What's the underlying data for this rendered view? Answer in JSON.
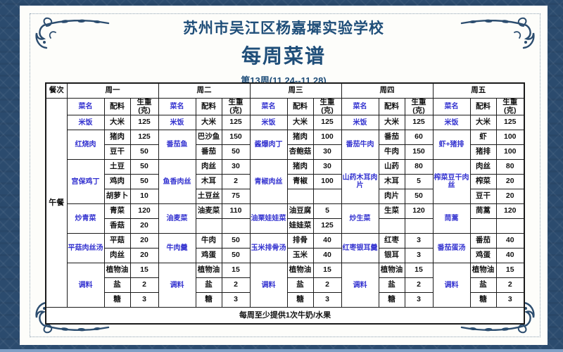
{
  "page": {
    "school": "苏州市吴江区杨嘉墀实验学校",
    "title": "每周菜谱",
    "week": "第13周(11.24--11.28)",
    "footer_note": "每周至少提供1次牛奶/水果"
  },
  "colors": {
    "frame_blue": "#2b4b6e",
    "title_blue": "#1f4e79",
    "dish_blue": "#3433d0",
    "bottom_strip": "#7f9fc5"
  },
  "icons": [
    {
      "name": "corner-flourish",
      "description": "decorative floral swirl in each corner"
    }
  ],
  "table": {
    "meal_header": "餐次",
    "meal_label": "午餐",
    "sub_headers": {
      "dish": "菜名",
      "ingredient": "配料",
      "weight": "生重(克)"
    },
    "days": [
      {
        "label": "周一",
        "dishes": [
          {
            "name": "米饭",
            "items": [
              {
                "i": "大米",
                "w": "125"
              }
            ]
          },
          {
            "name": "红烧肉",
            "items": [
              {
                "i": "猪肉",
                "w": "125"
              },
              {
                "i": "豆干",
                "w": "50"
              }
            ]
          },
          {
            "name": "宫保鸡丁",
            "items": [
              {
                "i": "土豆",
                "w": "50"
              },
              {
                "i": "鸡肉",
                "w": "50"
              },
              {
                "i": "胡萝卜",
                "w": "10"
              }
            ]
          },
          {
            "name": "炒青菜",
            "items": [
              {
                "i": "青菜",
                "w": "120"
              },
              {
                "i": "香菇",
                "w": "20"
              }
            ]
          },
          {
            "name": "平菇肉丝汤",
            "items": [
              {
                "i": "平菇",
                "w": "20"
              },
              {
                "i": "肉丝",
                "w": "20"
              }
            ]
          },
          {
            "name": "调料",
            "items": [
              {
                "i": "植物油",
                "w": "15"
              },
              {
                "i": "盐",
                "w": "2"
              },
              {
                "i": "糖",
                "w": "3"
              }
            ]
          }
        ]
      },
      {
        "label": "周二",
        "dishes": [
          {
            "name": "米饭",
            "items": [
              {
                "i": "大米",
                "w": "125"
              }
            ]
          },
          {
            "name": "番茄鱼",
            "items": [
              {
                "i": "巴沙鱼",
                "w": "150"
              },
              {
                "i": "番茄",
                "w": "50"
              }
            ]
          },
          {
            "name": "鱼香肉丝",
            "items": [
              {
                "i": "肉丝",
                "w": "30"
              },
              {
                "i": "木耳",
                "w": "2"
              },
              {
                "i": "土豆丝",
                "w": "75"
              }
            ]
          },
          {
            "name": "油麦菜",
            "items": [
              {
                "i": "油麦菜",
                "w": "110"
              },
              {
                "i": "",
                "w": ""
              }
            ]
          },
          {
            "name": "牛肉羹",
            "items": [
              {
                "i": "牛肉",
                "w": "50"
              },
              {
                "i": "鸡蛋",
                "w": "50"
              }
            ]
          },
          {
            "name": "调料",
            "items": [
              {
                "i": "植物油",
                "w": "15"
              },
              {
                "i": "盐",
                "w": "2"
              },
              {
                "i": "糖",
                "w": "3"
              }
            ]
          }
        ]
      },
      {
        "label": "周三",
        "dishes": [
          {
            "name": "米饭",
            "items": [
              {
                "i": "大米",
                "w": "125"
              }
            ]
          },
          {
            "name": "酱爆肉丁",
            "items": [
              {
                "i": "猪肉",
                "w": "100"
              },
              {
                "i": "杏鲍菇",
                "w": "30"
              }
            ]
          },
          {
            "name": "青椒肉丝",
            "items": [
              {
                "i": "猪肉",
                "w": "30"
              },
              {
                "i": "青椒",
                "w": "100"
              },
              {
                "i": "",
                "w": ""
              }
            ]
          },
          {
            "name": "油栗娃娃菜",
            "items": [
              {
                "i": "油豆腐",
                "w": "5"
              },
              {
                "i": "娃娃菜",
                "w": "125"
              }
            ]
          },
          {
            "name": "玉米排骨汤",
            "items": [
              {
                "i": "排骨",
                "w": "40"
              },
              {
                "i": "玉米",
                "w": "40"
              }
            ]
          },
          {
            "name": "调料",
            "items": [
              {
                "i": "植物油",
                "w": "15"
              },
              {
                "i": "盐",
                "w": "2"
              },
              {
                "i": "糖",
                "w": "3"
              }
            ]
          }
        ]
      },
      {
        "label": "周四",
        "dishes": [
          {
            "name": "米饭",
            "items": [
              {
                "i": "大米",
                "w": "125"
              }
            ]
          },
          {
            "name": "番茄牛肉",
            "items": [
              {
                "i": "番茄",
                "w": "60"
              },
              {
                "i": "牛肉",
                "w": "150"
              }
            ]
          },
          {
            "name": "山药木耳肉片",
            "items": [
              {
                "i": "山药",
                "w": "80"
              },
              {
                "i": "木耳",
                "w": "5"
              },
              {
                "i": "肉片",
                "w": "50"
              }
            ]
          },
          {
            "name": "炒生菜",
            "items": [
              {
                "i": "生菜",
                "w": "120"
              },
              {
                "i": "",
                "w": ""
              }
            ]
          },
          {
            "name": "红枣银耳羹",
            "items": [
              {
                "i": "红枣",
                "w": "3"
              },
              {
                "i": "银耳",
                "w": "3"
              }
            ]
          },
          {
            "name": "调料",
            "items": [
              {
                "i": "植物油",
                "w": "15"
              },
              {
                "i": "盐",
                "w": "2"
              },
              {
                "i": "糖",
                "w": "3"
              }
            ]
          }
        ]
      },
      {
        "label": "周五",
        "dishes": [
          {
            "name": "米饭",
            "items": [
              {
                "i": "大米",
                "w": "125"
              }
            ]
          },
          {
            "name": "虾+猪排",
            "items": [
              {
                "i": "虾",
                "w": "100"
              },
              {
                "i": "猪排",
                "w": "100"
              }
            ]
          },
          {
            "name": "榨菜豆干肉丝",
            "items": [
              {
                "i": "肉丝",
                "w": "80"
              },
              {
                "i": "榨菜",
                "w": "20"
              },
              {
                "i": "豆干",
                "w": "20"
              }
            ]
          },
          {
            "name": "茼蒿",
            "items": [
              {
                "i": "茼蒿",
                "w": "120"
              },
              {
                "i": "",
                "w": ""
              }
            ]
          },
          {
            "name": "番茄蛋汤",
            "items": [
              {
                "i": "番茄",
                "w": "40"
              },
              {
                "i": "鸡蛋",
                "w": "40"
              }
            ]
          },
          {
            "name": "调料",
            "items": [
              {
                "i": "植物油",
                "w": "15"
              },
              {
                "i": "盐",
                "w": "2"
              },
              {
                "i": "糖",
                "w": "3"
              }
            ]
          }
        ]
      }
    ]
  }
}
